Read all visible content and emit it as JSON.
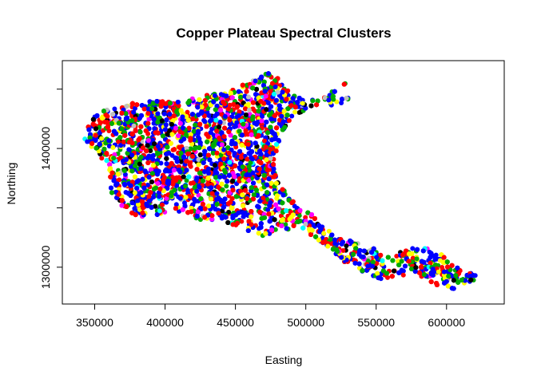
{
  "chart_data": {
    "type": "scatter",
    "title": "Copper Plateau Spectral Clusters",
    "xlabel": "Easting",
    "ylabel": "Northing",
    "xlim": [
      327000,
      641000
    ],
    "ylim": [
      1269000,
      1474000
    ],
    "x_ticks": [
      "350000",
      "400000",
      "450000",
      "500000",
      "550000",
      "600000"
    ],
    "y_ticks": [
      "1300000",
      "1400000"
    ],
    "y_tick_values": [
      1300000,
      1350000,
      1400000,
      1450000
    ],
    "x_tick_values": [
      350000,
      400000,
      450000,
      500000,
      550000,
      600000
    ],
    "grid": false,
    "legend": "none",
    "colors": [
      "#0000ff",
      "#ff0000",
      "#00aa00",
      "#ffff00",
      "#ff00ff",
      "#000000",
      "#00ffff",
      "#c0c0c0"
    ],
    "region_outline": [
      [
        343000,
        1414000
      ],
      [
        352000,
        1430000
      ],
      [
        370000,
        1437000
      ],
      [
        392000,
        1440000
      ],
      [
        415000,
        1442000
      ],
      [
        440000,
        1448000
      ],
      [
        465000,
        1458000
      ],
      [
        475000,
        1465000
      ],
      [
        482000,
        1458000
      ],
      [
        490000,
        1448000
      ],
      [
        500000,
        1440000
      ],
      [
        513000,
        1445000
      ],
      [
        520000,
        1449000
      ],
      [
        528000,
        1455000
      ],
      [
        527000,
        1446000
      ],
      [
        535000,
        1437000
      ],
      [
        520000,
        1436000
      ],
      [
        505000,
        1436000
      ],
      [
        490000,
        1425000
      ],
      [
        482000,
        1412000
      ],
      [
        478000,
        1385000
      ],
      [
        482000,
        1368000
      ],
      [
        490000,
        1358000
      ],
      [
        505000,
        1346000
      ],
      [
        522000,
        1325000
      ],
      [
        540000,
        1320000
      ],
      [
        560000,
        1310000
      ],
      [
        575000,
        1316000
      ],
      [
        590000,
        1318000
      ],
      [
        596000,
        1311000
      ],
      [
        612000,
        1296000
      ],
      [
        627000,
        1293000
      ],
      [
        625000,
        1287000
      ],
      [
        608000,
        1281000
      ],
      [
        592000,
        1285000
      ],
      [
        578000,
        1294000
      ],
      [
        565000,
        1292000
      ],
      [
        552000,
        1290000
      ],
      [
        540000,
        1296000
      ],
      [
        528000,
        1303000
      ],
      [
        512000,
        1320000
      ],
      [
        495000,
        1334000
      ],
      [
        480000,
        1330000
      ],
      [
        468000,
        1326000
      ],
      [
        455000,
        1333000
      ],
      [
        438000,
        1340000
      ],
      [
        425000,
        1340000
      ],
      [
        410000,
        1347000
      ],
      [
        395000,
        1344000
      ],
      [
        383000,
        1342000
      ],
      [
        370000,
        1348000
      ],
      [
        362000,
        1362000
      ],
      [
        358000,
        1385000
      ],
      [
        350000,
        1399000
      ],
      [
        342000,
        1406000
      ]
    ],
    "point_count": 9000,
    "point_distribution": "uniform-random within region_outline"
  }
}
